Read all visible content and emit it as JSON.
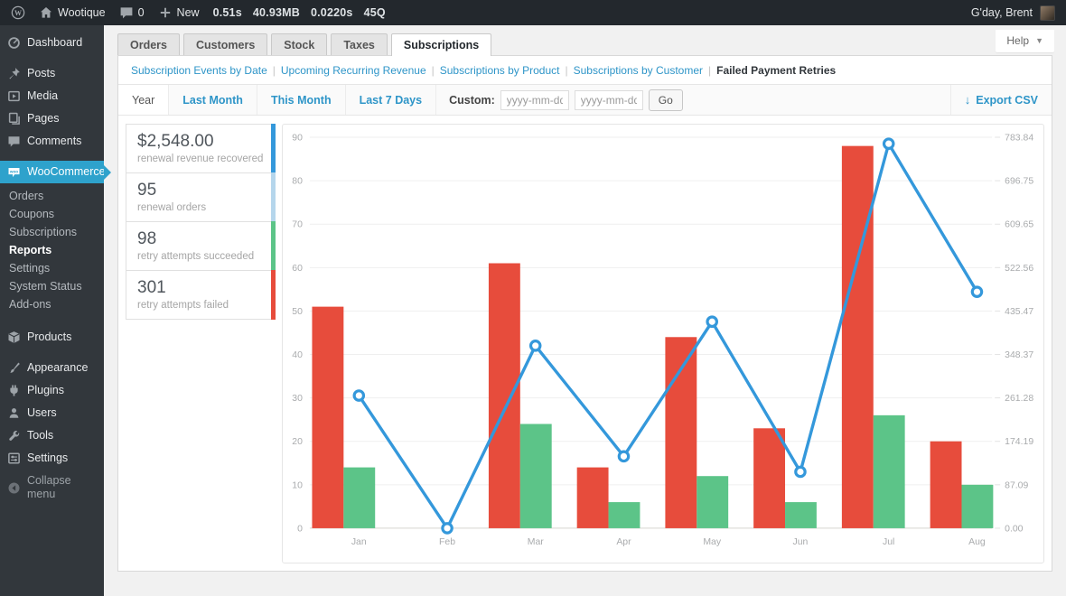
{
  "admin_bar": {
    "site_name": "Wootique",
    "comments_count": "0",
    "new_label": "New",
    "stats": [
      "0.51s",
      "40.93MB",
      "0.0220s",
      "45Q"
    ],
    "greeting": "G'day, Brent"
  },
  "help": {
    "label": "Help"
  },
  "colors": {
    "active_menu": "#2ea2cc",
    "link": "#2e95c8",
    "line_blue": "#3498db",
    "bar_red": "#e74c3c",
    "bar_green": "#5cc488"
  },
  "sidebar": {
    "items": [
      {
        "label": "Dashboard",
        "icon": "dashboard-icon"
      },
      {
        "label": "Posts",
        "icon": "pin-icon",
        "gap": true
      },
      {
        "label": "Media",
        "icon": "media-icon"
      },
      {
        "label": "Pages",
        "icon": "pages-icon"
      },
      {
        "label": "Comments",
        "icon": "comments-icon"
      },
      {
        "label": "WooCommerce",
        "icon": "woocommerce-icon",
        "active": true,
        "gap": true,
        "submenu": [
          "Orders",
          "Coupons",
          "Subscriptions",
          "Reports",
          "Settings",
          "System Status",
          "Add-ons"
        ],
        "submenu_active": "Reports"
      },
      {
        "label": "Products",
        "icon": "products-icon",
        "gap": true
      },
      {
        "label": "Appearance",
        "icon": "appearance-icon",
        "gap": true
      },
      {
        "label": "Plugins",
        "icon": "plugins-icon"
      },
      {
        "label": "Users",
        "icon": "users-icon"
      },
      {
        "label": "Tools",
        "icon": "tools-icon"
      },
      {
        "label": "Settings",
        "icon": "settings-icon"
      },
      {
        "label": "Collapse menu",
        "icon": "collapse-icon",
        "collapse": true
      }
    ]
  },
  "tabs": {
    "items": [
      "Orders",
      "Customers",
      "Stock",
      "Taxes",
      "Subscriptions"
    ],
    "active": "Subscriptions"
  },
  "report_nav": {
    "items": [
      "Subscription Events by Date",
      "Upcoming Recurring Revenue",
      "Subscriptions by Product",
      "Subscriptions by Customer",
      "Failed Payment Retries"
    ],
    "active": "Failed Payment Retries"
  },
  "range_bar": {
    "tabs": [
      "Year",
      "Last Month",
      "This Month",
      "Last 7 Days"
    ],
    "active": "Year",
    "custom_label": "Custom:",
    "date_placeholder": "yyyy-mm-dd",
    "go_label": "Go",
    "export_label": "Export CSV"
  },
  "summary_cards": [
    {
      "value": "$2,548.00",
      "label": "renewal revenue recovered",
      "accent": "#3498db"
    },
    {
      "value": "95",
      "label": "renewal orders",
      "accent": "#b5d6ec"
    },
    {
      "value": "98",
      "label": "retry attempts succeeded",
      "accent": "#5cc488"
    },
    {
      "value": "301",
      "label": "retry attempts failed",
      "accent": "#e74c3c"
    }
  ],
  "chart_data": {
    "type": "bar+line",
    "categories": [
      "Jan",
      "Feb",
      "Mar",
      "Apr",
      "May",
      "Jun",
      "Jul",
      "Aug"
    ],
    "series": [
      {
        "name": "retry attempts failed",
        "type": "bar",
        "axis": "left",
        "color": "#e74c3c",
        "values": [
          51,
          0,
          61,
          14,
          44,
          23,
          88,
          20
        ]
      },
      {
        "name": "retry attempts succeeded",
        "type": "bar",
        "axis": "left",
        "color": "#5cc488",
        "values": [
          14,
          0,
          24,
          6,
          12,
          6,
          26,
          10
        ]
      },
      {
        "name": "renewal revenue recovered",
        "type": "line",
        "axis": "right",
        "color": "#3498db",
        "values": [
          266,
          0,
          366,
          144,
          414,
          113,
          771,
          474
        ]
      }
    ],
    "left_axis": {
      "min": 0,
      "max": 90,
      "ticks": [
        0,
        10,
        20,
        30,
        40,
        50,
        60,
        70,
        80,
        90
      ]
    },
    "right_axis": {
      "min": 0,
      "max": 783.84,
      "ticks": [
        "0.00",
        "87.09",
        "174.19",
        "261.28",
        "348.37",
        "435.47",
        "522.56",
        "609.65",
        "696.75",
        "783.84"
      ]
    },
    "grid": true,
    "legend": "none"
  }
}
